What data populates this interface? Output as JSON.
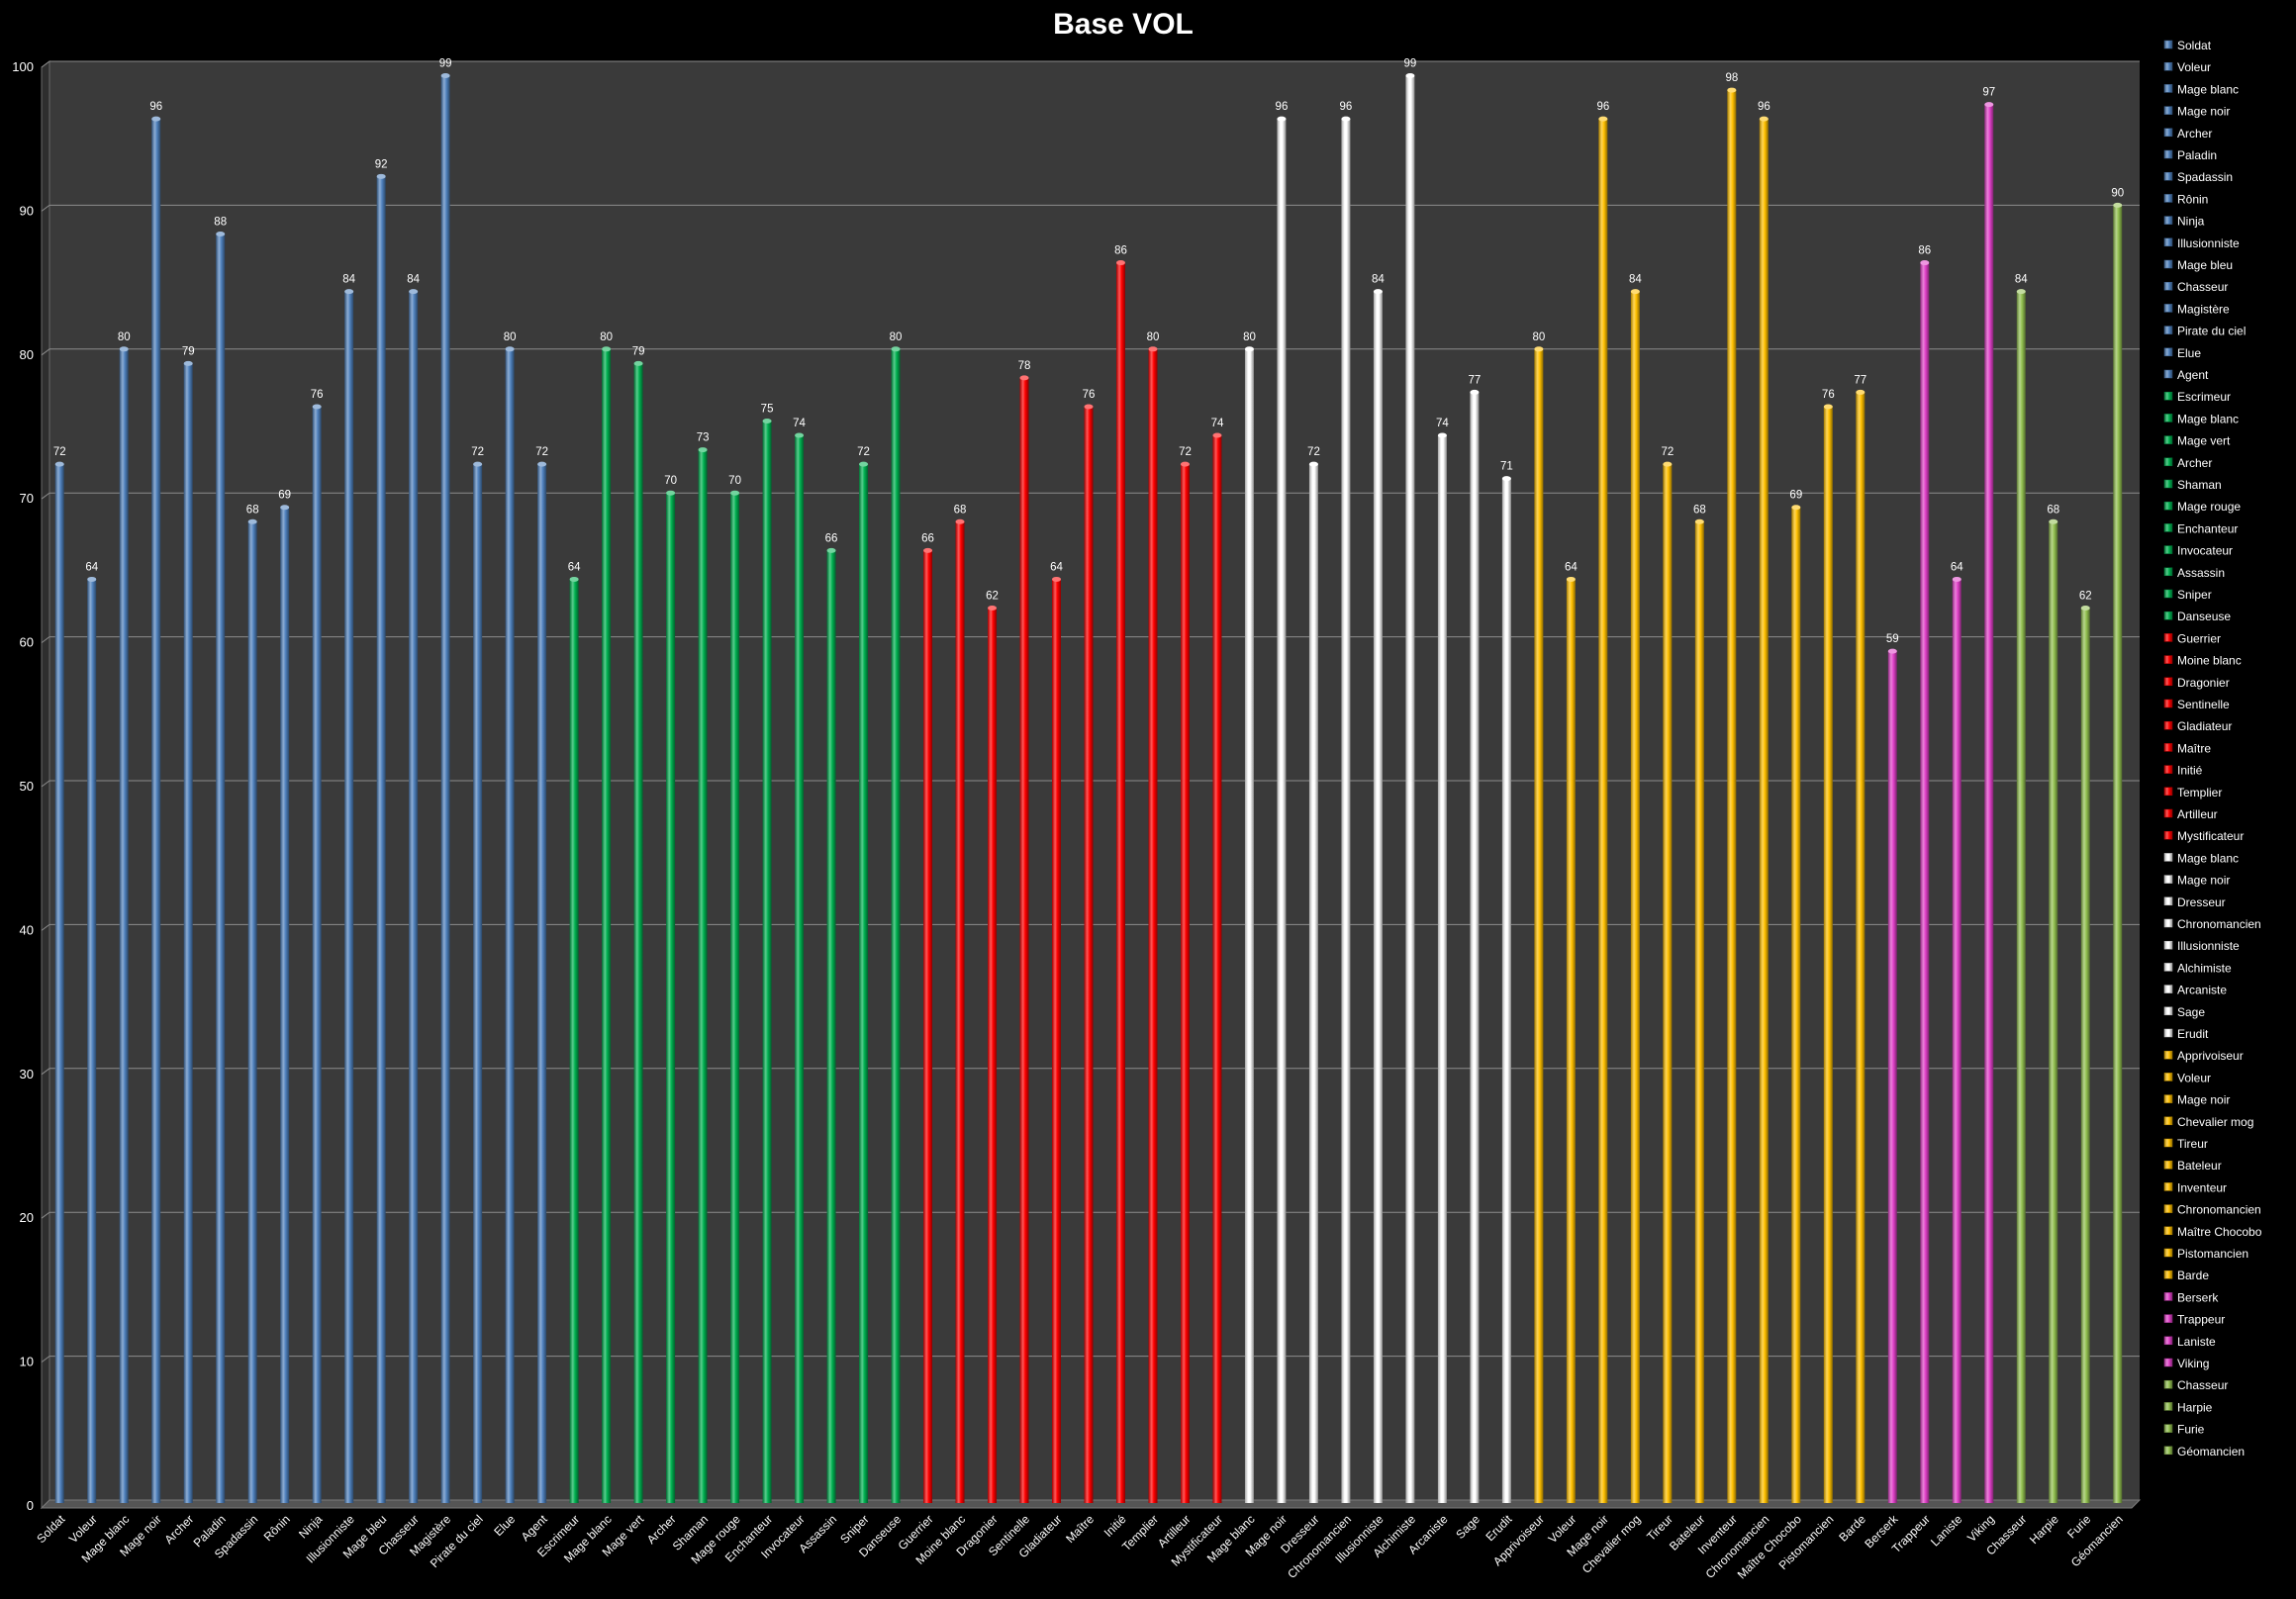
{
  "chart_data": {
    "type": "bar",
    "title": "Base VOL",
    "xlabel": "",
    "ylabel": "",
    "ylim": [
      0,
      100
    ],
    "yticks": [
      0,
      10,
      20,
      30,
      40,
      50,
      60,
      70,
      80,
      90,
      100
    ],
    "grid": true,
    "legend_position": "right",
    "groups": [
      {
        "color": "#4f81bd",
        "items": [
          {
            "label": "Soldat",
            "value": 72
          },
          {
            "label": "Voleur",
            "value": 64
          },
          {
            "label": "Mage blanc",
            "value": 80
          },
          {
            "label": "Mage noir",
            "value": 96
          },
          {
            "label": "Archer",
            "value": 79
          },
          {
            "label": "Paladin",
            "value": 88
          },
          {
            "label": "Spadassin",
            "value": 68
          },
          {
            "label": "Rônin",
            "value": 69
          },
          {
            "label": "Ninja",
            "value": 76
          },
          {
            "label": "Illusionniste",
            "value": 84
          },
          {
            "label": "Mage bleu",
            "value": 92
          },
          {
            "label": "Chasseur",
            "value": 84
          },
          {
            "label": "Magistère",
            "value": 99
          },
          {
            "label": "Pirate du ciel",
            "value": 72
          },
          {
            "label": "Elue",
            "value": 80
          },
          {
            "label": "Agent",
            "value": 72
          }
        ]
      },
      {
        "color": "#00b050",
        "items": [
          {
            "label": "Escrimeur",
            "value": 64
          },
          {
            "label": "Mage blanc",
            "value": 80
          },
          {
            "label": "Mage vert",
            "value": 79
          },
          {
            "label": "Archer",
            "value": 70
          },
          {
            "label": "Shaman",
            "value": 73
          },
          {
            "label": "Mage rouge",
            "value": 70
          },
          {
            "label": "Enchanteur",
            "value": 75
          },
          {
            "label": "Invocateur",
            "value": 74
          },
          {
            "label": "Assassin",
            "value": 66
          },
          {
            "label": "Sniper",
            "value": 72
          },
          {
            "label": "Danseuse",
            "value": 80
          }
        ]
      },
      {
        "color": "#ff0000",
        "items": [
          {
            "label": "Guerrier",
            "value": 66
          },
          {
            "label": "Moine blanc",
            "value": 68
          },
          {
            "label": "Dragonier",
            "value": 62
          },
          {
            "label": "Sentinelle",
            "value": 78
          },
          {
            "label": "Gladiateur",
            "value": 64
          },
          {
            "label": "Maître",
            "value": 76
          },
          {
            "label": "Initié",
            "value": 86
          },
          {
            "label": "Templier",
            "value": 80
          },
          {
            "label": "Artilleur",
            "value": 72
          },
          {
            "label": "Mystificateur",
            "value": 74
          }
        ]
      },
      {
        "color": "#ffffff",
        "items": [
          {
            "label": "Mage blanc",
            "value": 80
          },
          {
            "label": "Mage noir",
            "value": 96
          },
          {
            "label": "Dresseur",
            "value": 72
          },
          {
            "label": "Chronomancien",
            "value": 96
          },
          {
            "label": "Illusionniste",
            "value": 84
          },
          {
            "label": "Alchimiste",
            "value": 99
          },
          {
            "label": "Arcaniste",
            "value": 74
          },
          {
            "label": "Sage",
            "value": 77
          },
          {
            "label": "Erudit",
            "value": 71
          }
        ]
      },
      {
        "color": "#ffc000",
        "items": [
          {
            "label": "Apprivoiseur",
            "value": 80
          },
          {
            "label": "Voleur",
            "value": 64
          },
          {
            "label": "Mage noir",
            "value": 96
          },
          {
            "label": "Chevalier mog",
            "value": 84
          },
          {
            "label": "Tireur",
            "value": 72
          },
          {
            "label": "Bateleur",
            "value": 68
          },
          {
            "label": "Inventeur",
            "value": 98
          },
          {
            "label": "Chronomancien",
            "value": 96
          },
          {
            "label": "Maître Chocobo",
            "value": 69
          },
          {
            "label": "Pistomancien",
            "value": 76
          },
          {
            "label": "Barde",
            "value": 77
          }
        ]
      },
      {
        "color": "#e040c8",
        "items": [
          {
            "label": "Berserk",
            "value": 59
          },
          {
            "label": "Trappeur",
            "value": 86
          },
          {
            "label": "Laniste",
            "value": 64
          },
          {
            "label": "Viking",
            "value": 97
          }
        ]
      },
      {
        "color": "#92c050",
        "items": [
          {
            "label": "Chasseur",
            "value": 84
          },
          {
            "label": "Harpie",
            "value": 68
          },
          {
            "label": "Furie",
            "value": 62
          },
          {
            "label": "Géomancien",
            "value": 90
          }
        ]
      }
    ]
  }
}
